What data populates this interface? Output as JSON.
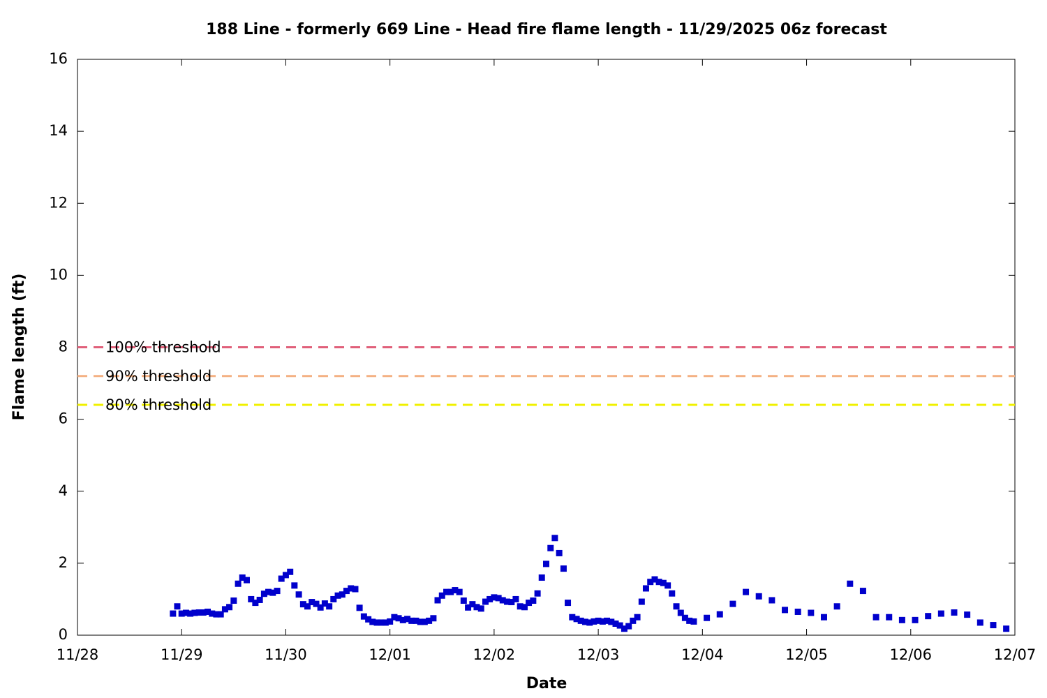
{
  "chart_data": {
    "type": "scatter",
    "title": "188 Line - formerly 669 Line - Head fire flame length - 11/29/2025 06z forecast",
    "x_label": "Date",
    "y_label": "Flame length (ft)",
    "xlim": [
      0,
      9
    ],
    "xticks": [
      {
        "value": 0,
        "label": "11/28"
      },
      {
        "value": 1,
        "label": "11/29"
      },
      {
        "value": 2,
        "label": "11/30"
      },
      {
        "value": 3,
        "label": "12/01"
      },
      {
        "value": 4,
        "label": "12/02"
      },
      {
        "value": 5,
        "label": "12/03"
      },
      {
        "value": 6,
        "label": "12/04"
      },
      {
        "value": 7,
        "label": "12/05"
      },
      {
        "value": 8,
        "label": "12/06"
      },
      {
        "value": 9,
        "label": "12/07"
      }
    ],
    "ylim": [
      0,
      16
    ],
    "yticks": [
      0,
      2,
      4,
      6,
      8,
      10,
      12,
      14,
      16
    ],
    "thresholds": [
      {
        "name": "100% threshold",
        "value": 8,
        "color": "#e0607a"
      },
      {
        "name": "90% threshold",
        "value": 7.2,
        "color": "#f4b183"
      },
      {
        "name": "80% threshold",
        "value": 6.4,
        "color": "#f0f000"
      }
    ],
    "series": [
      {
        "color": "#0000cc",
        "x": [
          0.917,
          0.958,
          1.0,
          1.042,
          1.083,
          1.125,
          1.167,
          1.208,
          1.25,
          1.292,
          1.333,
          1.375,
          1.417,
          1.458,
          1.5,
          1.542,
          1.583,
          1.625,
          1.667,
          1.708,
          1.75,
          1.792,
          1.833,
          1.875,
          1.917,
          1.958,
          2.0,
          2.042,
          2.083,
          2.125,
          2.167,
          2.208,
          2.25,
          2.292,
          2.333,
          2.375,
          2.417,
          2.458,
          2.5,
          2.542,
          2.583,
          2.625,
          2.667,
          2.708,
          2.75,
          2.792,
          2.833,
          2.875,
          2.917,
          2.958,
          3.0,
          3.042,
          3.083,
          3.125,
          3.167,
          3.208,
          3.25,
          3.292,
          3.333,
          3.375,
          3.417,
          3.458,
          3.5,
          3.542,
          3.583,
          3.625,
          3.667,
          3.708,
          3.75,
          3.792,
          3.833,
          3.875,
          3.917,
          3.958,
          4.0,
          4.042,
          4.083,
          4.125,
          4.167,
          4.208,
          4.25,
          4.292,
          4.333,
          4.375,
          4.417,
          4.458,
          4.5,
          4.542,
          4.583,
          4.625,
          4.667,
          4.708,
          4.75,
          4.792,
          4.833,
          4.875,
          4.917,
          4.958,
          5.0,
          5.042,
          5.083,
          5.125,
          5.167,
          5.208,
          5.25,
          5.292,
          5.333,
          5.375,
          5.417,
          5.458,
          5.5,
          5.542,
          5.583,
          5.625,
          5.667,
          5.708,
          5.75,
          5.792,
          5.833,
          5.875,
          5.917,
          6.042,
          6.167,
          6.292,
          6.417,
          6.542,
          6.667,
          6.792,
          6.917,
          7.042,
          7.167,
          7.292,
          7.417,
          7.542,
          7.667,
          7.792,
          7.917,
          8.042,
          8.167,
          8.292,
          8.417,
          8.542,
          8.667,
          8.792,
          8.917
        ],
        "values": [
          0.6,
          0.8,
          0.6,
          0.62,
          0.6,
          0.62,
          0.63,
          0.63,
          0.65,
          0.6,
          0.58,
          0.58,
          0.72,
          0.78,
          0.96,
          1.43,
          1.6,
          1.53,
          1.0,
          0.9,
          0.98,
          1.15,
          1.2,
          1.18,
          1.23,
          1.57,
          1.67,
          1.76,
          1.38,
          1.13,
          0.86,
          0.8,
          0.92,
          0.87,
          0.77,
          0.88,
          0.8,
          1.0,
          1.1,
          1.13,
          1.23,
          1.3,
          1.28,
          0.76,
          0.52,
          0.44,
          0.37,
          0.35,
          0.35,
          0.35,
          0.38,
          0.5,
          0.47,
          0.42,
          0.45,
          0.4,
          0.4,
          0.37,
          0.37,
          0.4,
          0.47,
          0.97,
          1.1,
          1.2,
          1.2,
          1.25,
          1.2,
          0.96,
          0.77,
          0.86,
          0.78,
          0.74,
          0.93,
          1.0,
          1.05,
          1.03,
          0.97,
          0.93,
          0.92,
          1.0,
          0.8,
          0.78,
          0.9,
          0.96,
          1.16,
          1.6,
          1.98,
          2.42,
          2.7,
          2.28,
          1.85,
          0.9,
          0.5,
          0.45,
          0.4,
          0.37,
          0.35,
          0.38,
          0.4,
          0.38,
          0.4,
          0.37,
          0.32,
          0.27,
          0.18,
          0.25,
          0.4,
          0.5,
          0.93,
          1.3,
          1.48,
          1.55,
          1.48,
          1.45,
          1.38,
          1.16,
          0.8,
          0.62,
          0.48,
          0.4,
          0.38,
          0.48,
          0.58,
          0.87,
          1.2,
          1.08,
          0.97,
          0.7,
          0.65,
          0.62,
          0.5,
          0.8,
          1.43,
          1.23,
          0.5,
          0.5,
          0.42,
          0.42,
          0.53,
          0.6,
          0.63,
          0.57,
          0.35,
          0.28,
          0.18
        ]
      }
    ]
  }
}
